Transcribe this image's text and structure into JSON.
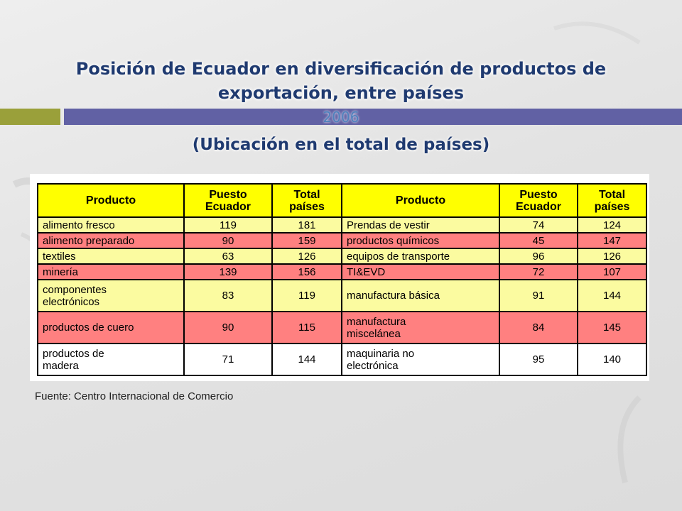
{
  "title": {
    "line1": "Posición de Ecuador en diversificación de productos de",
    "line2": "exportación, entre países"
  },
  "year": "2006",
  "subtitle": "(Ubicación en el total de países)",
  "table": {
    "headers": [
      "Producto",
      "Puesto\nEcuador",
      "Total\npaíses",
      "Producto",
      "Puesto\nEcuador",
      "Total\npaíses"
    ],
    "rows": [
      {
        "style": "yellow",
        "cells": [
          "alimento fresco",
          "119",
          "181",
          "Prendas de vestir",
          "74",
          "124"
        ]
      },
      {
        "style": "red",
        "cells": [
          "alimento preparado",
          "90",
          "159",
          "productos químicos",
          "45",
          "147"
        ]
      },
      {
        "style": "yellow",
        "cells": [
          "textiles",
          "63",
          "126",
          "equipos de transporte",
          "96",
          "126"
        ]
      },
      {
        "style": "red",
        "cells": [
          "minería",
          "139",
          "156",
          "TI&EVD",
          "72",
          "107"
        ]
      },
      {
        "style": "yellow",
        "cells": [
          "componentes\nelectrónicos",
          "83",
          "119",
          "manufactura básica",
          "91",
          "144"
        ]
      },
      {
        "style": "red",
        "cells": [
          "productos de cuero",
          "90",
          "115",
          "manufactura\nmiscelánea",
          "84",
          "145"
        ]
      },
      {
        "style": "white",
        "cells": [
          "productos de\nmadera",
          "71",
          "144",
          "maquinaria no\nelectrónica",
          "95",
          "140"
        ]
      }
    ]
  },
  "source": "Fuente: Centro Internacional de Comercio",
  "colors": {
    "title": "#1f3a70",
    "year": "#4f81bd",
    "header_bg": "#ffff00",
    "row_yellow": "#fbfba0",
    "row_red": "#ff8080",
    "bar_green": "#9aa03a",
    "bar_blue": "#5a5aa0"
  }
}
